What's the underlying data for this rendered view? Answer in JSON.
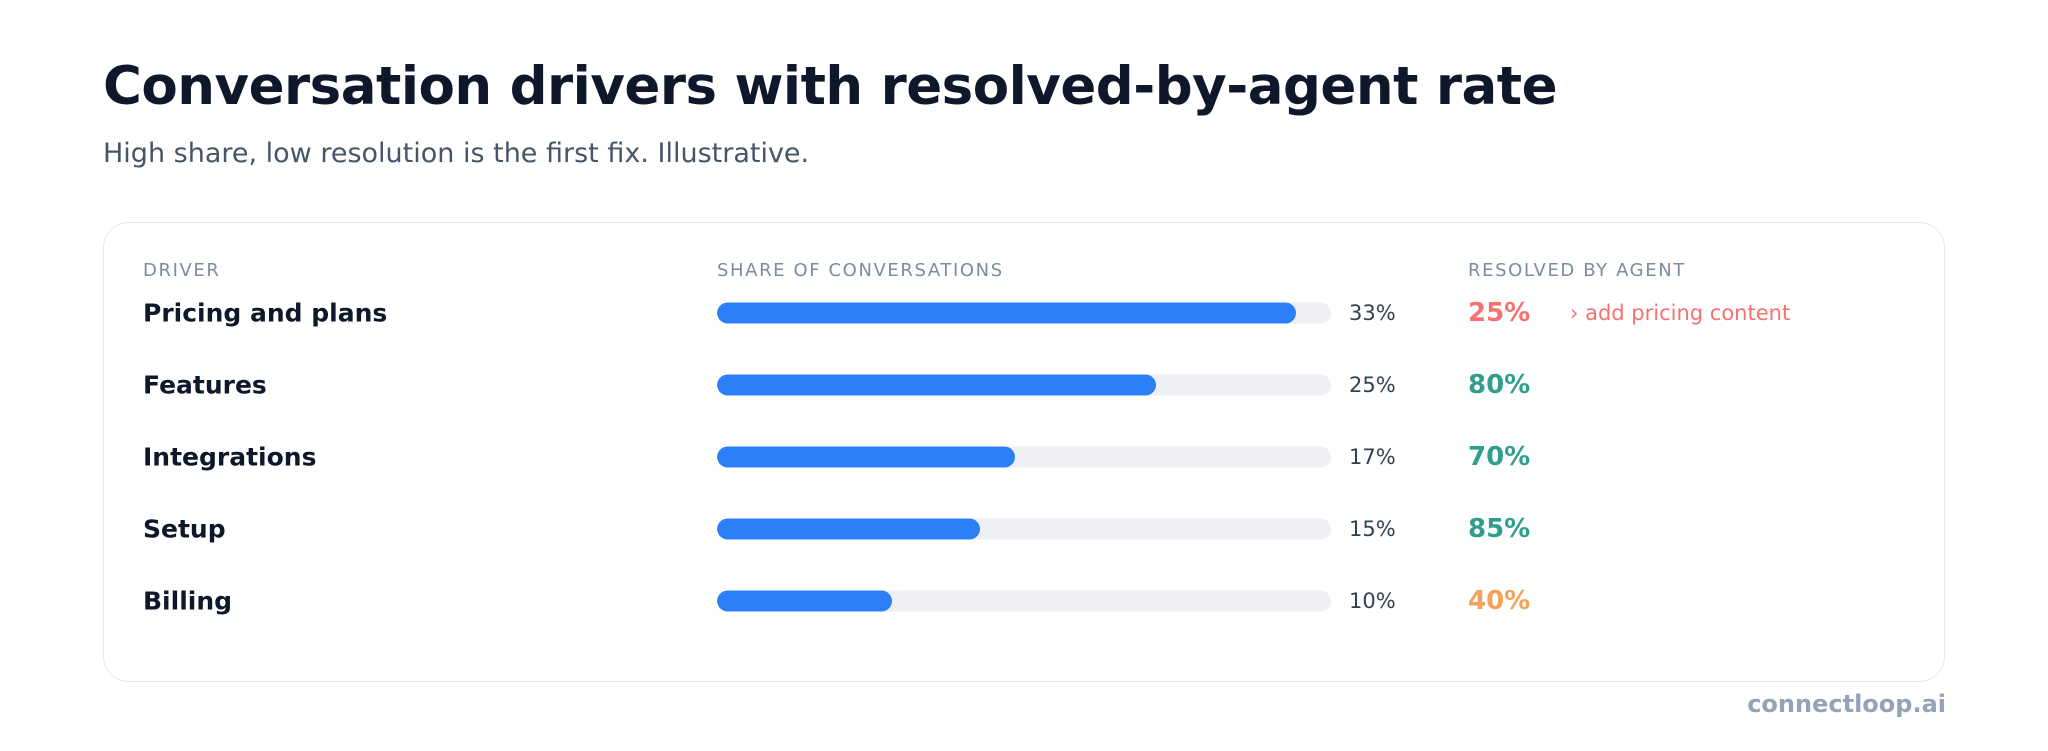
{
  "title": "Conversation drivers with resolved-by-agent rate",
  "subtitle": "High share, low resolution is the first fix. Illustrative.",
  "brand": "connectloop.ai",
  "colors": {
    "bar": "#2d7ff9",
    "track": "#eef0f4",
    "low": "#f87171",
    "high": "#2f9e8f",
    "mid": "#f2a35a"
  },
  "chart_data": {
    "type": "bar",
    "columns": [
      "DRIVER",
      "SHARE OF CONVERSATIONS",
      "RESOLVED BY AGENT"
    ],
    "categories": [
      "Pricing and plans",
      "Features",
      "Integrations",
      "Setup",
      "Billing"
    ],
    "series": [
      {
        "name": "SHARE OF CONVERSATIONS",
        "values": [
          33,
          25,
          17,
          15,
          10
        ],
        "labels": [
          "33%",
          "25%",
          "17%",
          "15%",
          "10%"
        ]
      },
      {
        "name": "RESOLVED BY AGENT",
        "values": [
          25,
          80,
          70,
          85,
          40
        ],
        "labels": [
          "25%",
          "80%",
          "70%",
          "85%",
          "40%"
        ],
        "status": [
          "low",
          "high",
          "high",
          "high",
          "mid"
        ]
      }
    ],
    "bar_scale_max": 35,
    "annotations": [
      {
        "category": "Pricing and plans",
        "text": "› add pricing content",
        "status": "low"
      }
    ],
    "grid": false,
    "legend": "none"
  }
}
